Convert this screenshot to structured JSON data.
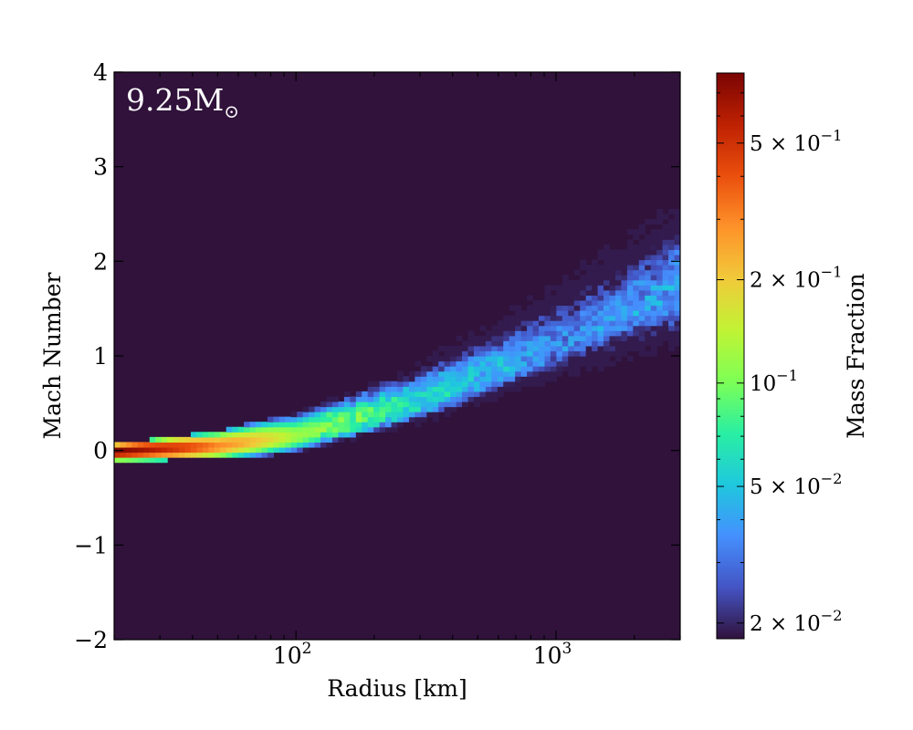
{
  "chart_data": {
    "type": "heatmap",
    "annotation": "9.25M",
    "annotation_sub": "⊙",
    "xlabel": "Radius [km]",
    "ylabel": "Mach Number",
    "xscale": "log",
    "xlim": [
      20,
      3000
    ],
    "ylim": [
      -2,
      4
    ],
    "y_ticks": [
      "4",
      "3",
      "2",
      "1",
      "0",
      "−1",
      "−2"
    ],
    "x_ticks": [
      {
        "base": "10",
        "exp": "2",
        "value": 100
      },
      {
        "base": "10",
        "exp": "3",
        "value": 1000
      }
    ],
    "colormap": [
      "#30123b",
      "#4454c4",
      "#4490fe",
      "#1fc8de",
      "#29efa2",
      "#7dff56",
      "#c1f334",
      "#f1ca3a",
      "#fe922a",
      "#ea4f0d",
      "#be2102",
      "#7a0403"
    ],
    "background_color": "#30123b",
    "colorbar": {
      "label": "Mass Fraction",
      "scale": "log",
      "range": [
        0.018,
        0.8
      ],
      "ticks": [
        {
          "mantissa": "5",
          "times": "×",
          "base": "10",
          "exp": "−1",
          "value": 0.5
        },
        {
          "mantissa": "2",
          "times": "×",
          "base": "10",
          "exp": "−1",
          "value": 0.2
        },
        {
          "mantissa": "",
          "times": "",
          "base": "10",
          "exp": "−1",
          "value": 0.1
        },
        {
          "mantissa": "5",
          "times": "×",
          "base": "10",
          "exp": "−2",
          "value": 0.05
        },
        {
          "mantissa": "2",
          "times": "×",
          "base": "10",
          "exp": "−2",
          "value": 0.02
        }
      ]
    },
    "distribution": {
      "description_points": [
        {
          "r": 20,
          "mach_center": 0.0,
          "mass_fraction": 0.8
        },
        {
          "r": 50,
          "mach_center": 0.05,
          "mass_fraction": 0.3
        },
        {
          "r": 100,
          "mach_center": 0.15,
          "mass_fraction": 0.12
        },
        {
          "r": 300,
          "mach_center": 0.5,
          "mass_fraction": 0.06
        },
        {
          "r": 1000,
          "mach_center": 1.1,
          "mass_fraction": 0.035
        },
        {
          "r": 3000,
          "mach_center": 1.7,
          "mass_fraction": 0.04
        }
      ]
    }
  }
}
